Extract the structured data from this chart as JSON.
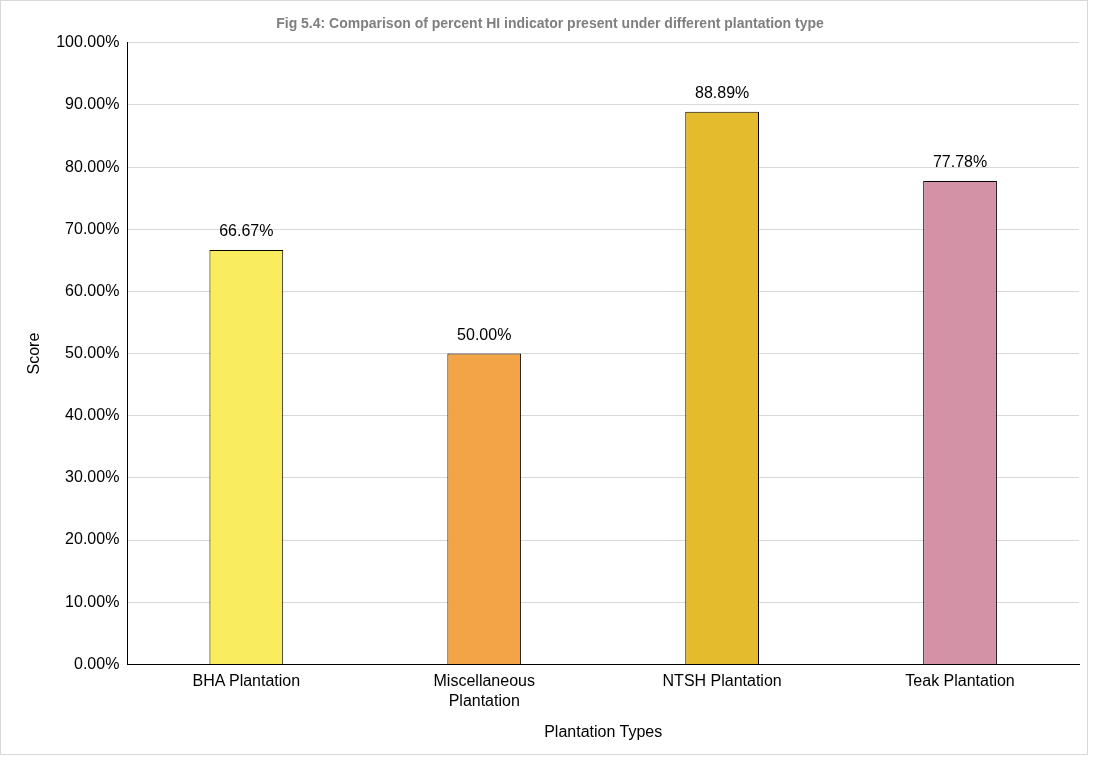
{
  "chart_data": {
    "type": "bar",
    "title": "Fig 5.4: Comparison of percent HI indicator present under different plantation type",
    "xlabel": "Plantation Types",
    "ylabel": "Score",
    "categories": [
      "BHA Plantation",
      "Miscellaneous Plantation",
      "NTSH Plantation",
      "Teak Plantation"
    ],
    "values": [
      66.67,
      50,
      88.89,
      77.78
    ],
    "colors": [
      "#f9ed5f",
      "#f2a446",
      "#e4bb2c",
      "#d492a6"
    ],
    "value_labels": [
      "66.67%",
      "50.00%",
      "88.89%",
      "77.78%"
    ],
    "ylim": [
      0,
      100
    ],
    "yticks": [
      {
        "value": 0,
        "label": "0.00%"
      },
      {
        "value": 10,
        "label": "10.00%"
      },
      {
        "value": 20,
        "label": "20.00%"
      },
      {
        "value": 30,
        "label": "30.00%"
      },
      {
        "value": 40,
        "label": "40.00%"
      },
      {
        "value": 50,
        "label": "50.00%"
      },
      {
        "value": 60,
        "label": "60.00%"
      },
      {
        "value": 70,
        "label": "70.00%"
      },
      {
        "value": 80,
        "label": "80.00%"
      },
      {
        "value": 90,
        "label": "90.00%"
      },
      {
        "value": 100,
        "label": "100.00%"
      }
    ],
    "grid": "y",
    "legend": false
  }
}
